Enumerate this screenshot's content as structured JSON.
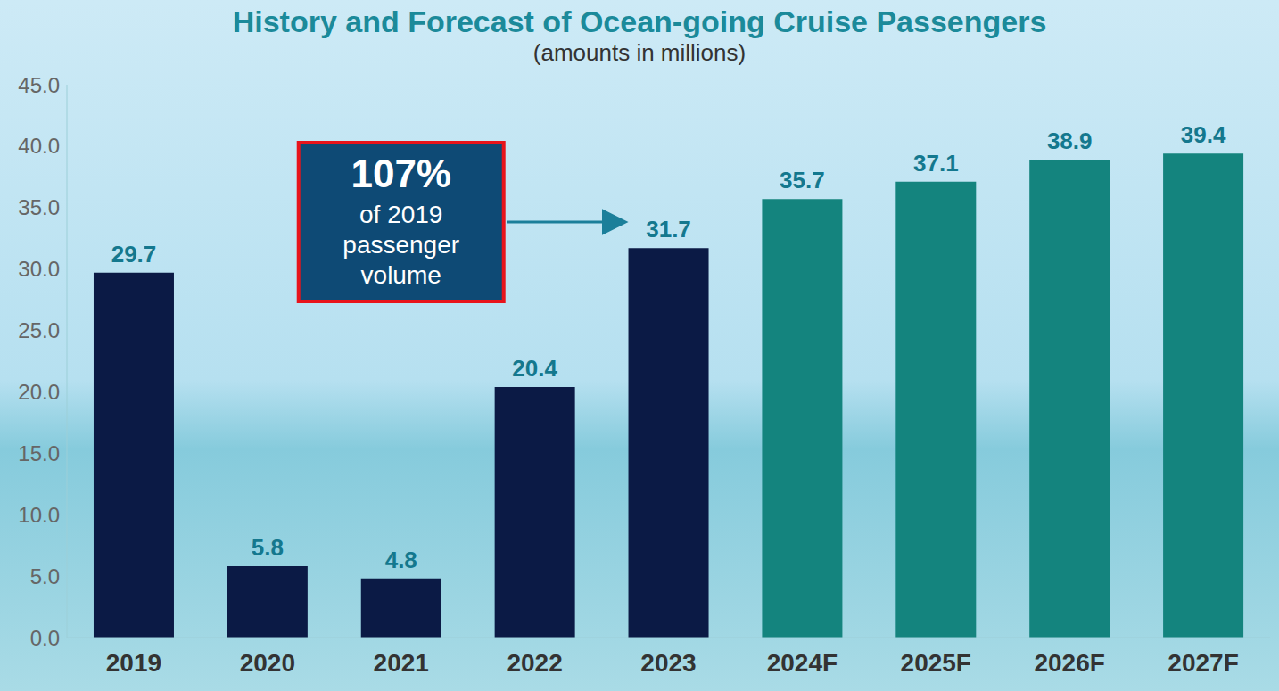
{
  "chart_data": {
    "type": "bar",
    "title": "History and Forecast of Ocean-going Cruise Passengers",
    "subtitle": "(amounts in millions)",
    "categories": [
      "2019",
      "2020",
      "2021",
      "2022",
      "2023",
      "2024F",
      "2025F",
      "2026F",
      "2027F"
    ],
    "values": [
      29.7,
      5.8,
      4.8,
      20.4,
      31.7,
      35.7,
      37.1,
      38.9,
      39.4
    ],
    "colors": [
      "#0b1a45",
      "#0b1a45",
      "#0b1a45",
      "#0b1a45",
      "#0b1a45",
      "#14847e",
      "#14847e",
      "#14847e",
      "#14847e"
    ],
    "ylim": [
      0,
      45
    ],
    "yticks": [
      {
        "value": 0,
        "label": "0.0"
      },
      {
        "value": 5,
        "label": "5.0"
      },
      {
        "value": 10,
        "label": "10.0"
      },
      {
        "value": 15,
        "label": "15.0"
      },
      {
        "value": 20,
        "label": "20.0"
      },
      {
        "value": 25,
        "label": "25.0"
      },
      {
        "value": 30,
        "label": "30.0"
      },
      {
        "value": 35,
        "label": "35.0"
      },
      {
        "value": 40,
        "label": "40.0"
      },
      {
        "value": 45,
        "label": "45.0"
      }
    ],
    "grid": false,
    "data_labels": true,
    "annotations": [
      {
        "label": "107%",
        "value": 107,
        "text": "of 2019 passenger volume",
        "category": "2023"
      }
    ]
  }
}
